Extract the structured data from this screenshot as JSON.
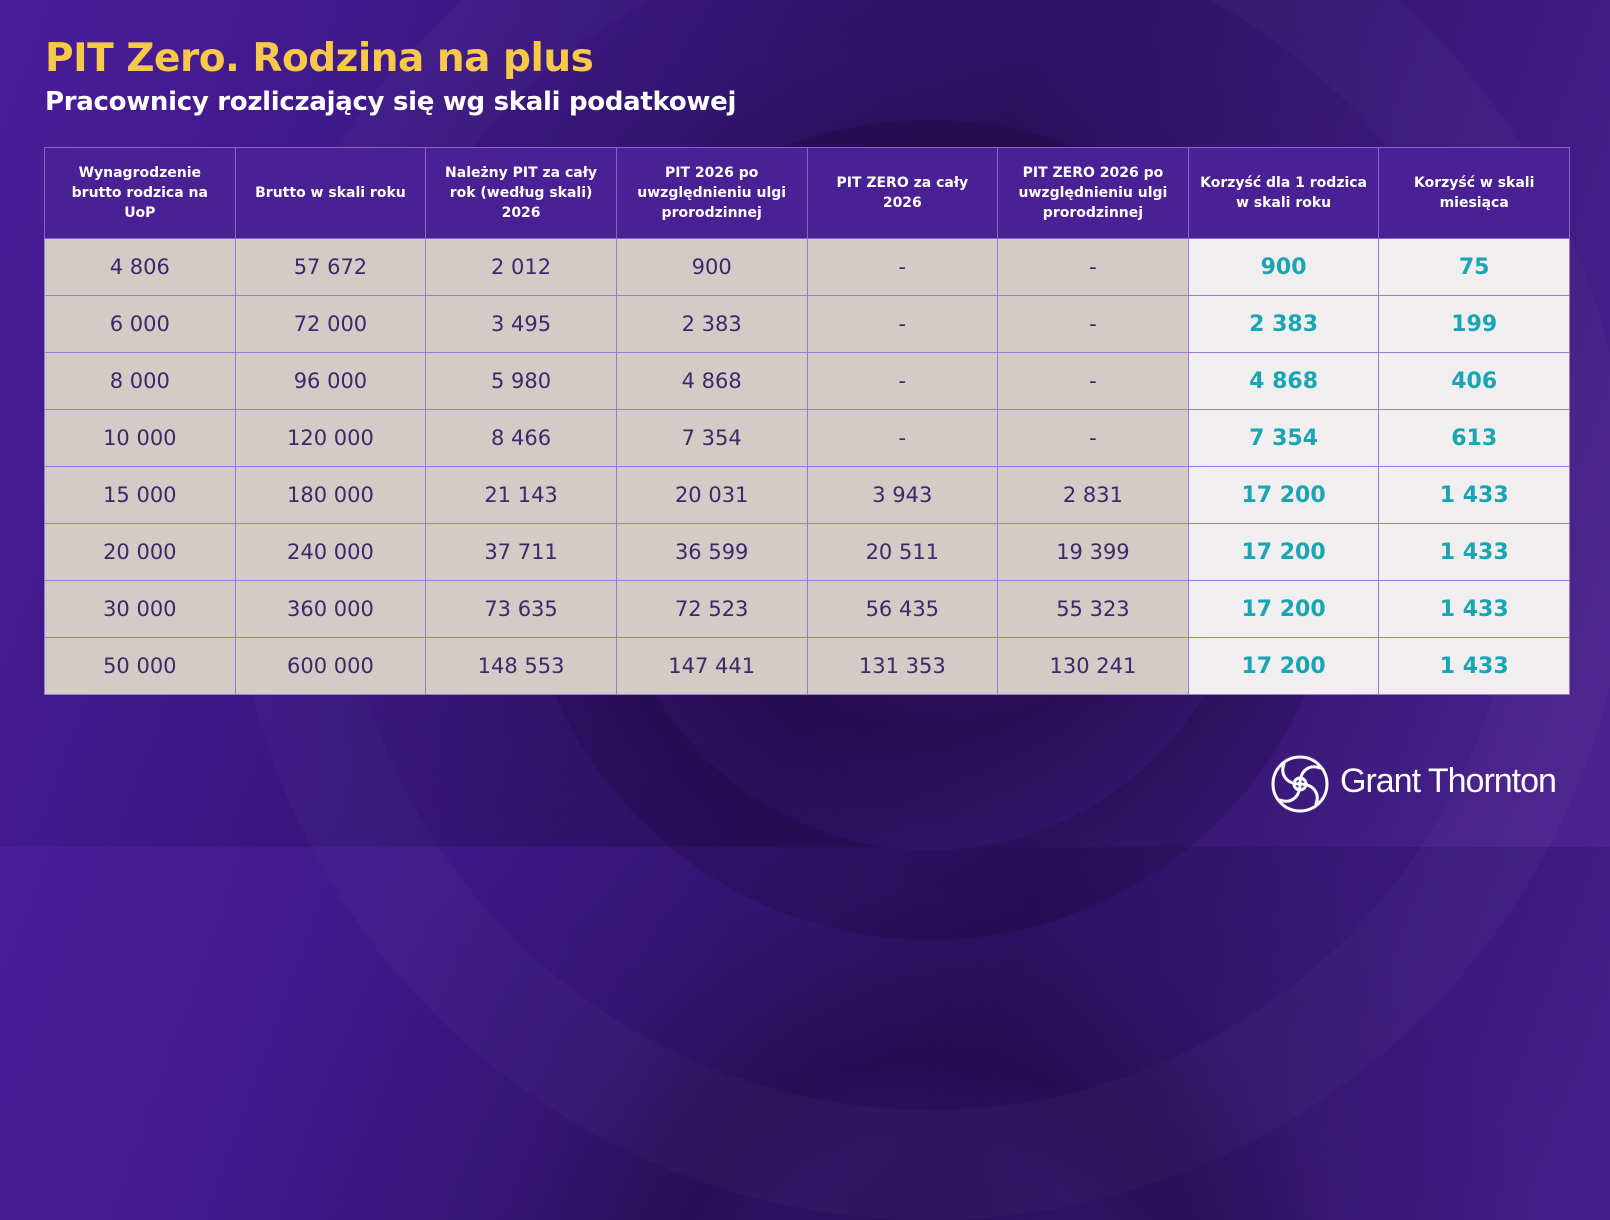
{
  "header": {
    "title": "PIT Zero. Rodzina na plus",
    "subtitle": "Pracownicy rozliczający się wg skali podatkowej"
  },
  "brand": {
    "name": "Grant Thornton",
    "logo_icon": "grant-thornton-swirl-icon",
    "accent_color": "#f7c948",
    "benefit_color": "#1aa5b5"
  },
  "chart_data": {
    "type": "table",
    "title": "PIT Zero. Rodzina na plus",
    "subtitle": "Pracownicy rozliczający się wg skali podatkowej",
    "columns": [
      "Wynagrodzenie brutto rodzica na UoP",
      "Brutto w skali roku",
      "Należny PIT za cały rok (według skali) 2026",
      "PIT 2026 po uwzględnieniu ulgi prorodzinnej",
      "PIT ZERO za cały 2026",
      "PIT ZERO 2026 po uwzględnieniu ulgi prorodzinnej",
      "Korzyść dla 1 rodzica w skali roku",
      "Korzyść w skali miesiąca"
    ],
    "rows": [
      [
        "4 806",
        "57 672",
        "2 012",
        "900",
        "-",
        "-",
        "900",
        "75"
      ],
      [
        "6 000",
        "72 000",
        "3 495",
        "2 383",
        "-",
        "-",
        "2 383",
        "199"
      ],
      [
        "8 000",
        "96 000",
        "5 980",
        "4 868",
        "-",
        "-",
        "4 868",
        "406"
      ],
      [
        "10 000",
        "120 000",
        "8 466",
        "7 354",
        "-",
        "-",
        "7 354",
        "613"
      ],
      [
        "15 000",
        "180 000",
        "21 143",
        "20 031",
        "3 943",
        "2 831",
        "17 200",
        "1 433"
      ],
      [
        "20 000",
        "240 000",
        "37 711",
        "36 599",
        "20 511",
        "19 399",
        "17 200",
        "1 433"
      ],
      [
        "30 000",
        "360 000",
        "73 635",
        "72 523",
        "56 435",
        "55 323",
        "17 200",
        "1 433"
      ],
      [
        "50 000",
        "600 000",
        "148 553",
        "147 441",
        "131 353",
        "130 241",
        "17 200",
        "1 433"
      ]
    ],
    "highlight_columns": [
      6,
      7
    ]
  }
}
